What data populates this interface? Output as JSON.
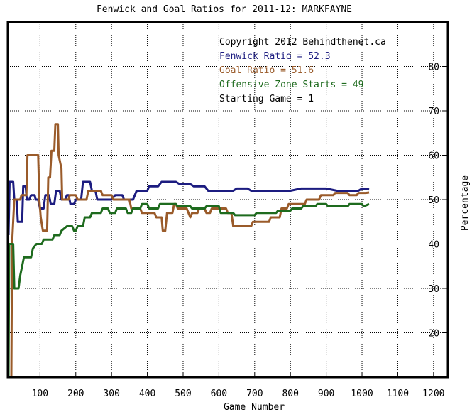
{
  "chart_data": {
    "type": "line",
    "title": "Fenwick and Goal Ratios for 2011-12: MARKFAYNE",
    "xlabel": "Game Number",
    "ylabel": "Percentage",
    "xlim": [
      10,
      1240
    ],
    "ylim": [
      10,
      90
    ],
    "x_ticks": [
      100,
      200,
      300,
      400,
      500,
      600,
      700,
      800,
      900,
      1000,
      1100,
      1200
    ],
    "y_ticks": [
      20,
      30,
      40,
      50,
      60,
      70,
      80
    ],
    "grid": true,
    "y_axis_side": "right",
    "annotations": [
      {
        "text": "Copyright 2012 Behindthenet.ca",
        "color": "#000000"
      },
      {
        "text": "Fenwick Ratio = 52.3",
        "color": "#1c1c80"
      },
      {
        "text": "Goal Ratio = 51.6",
        "color": "#9a5b2a"
      },
      {
        "text": "Offensive Zone Starts = 49",
        "color": "#1e6b1e"
      },
      {
        "text": "Starting Game = 1",
        "color": "#000000"
      }
    ],
    "series": [
      {
        "color": "#1c1c80",
        "points": [
          [
            12,
            42
          ],
          [
            15,
            54
          ],
          [
            25,
            54
          ],
          [
            28,
            50
          ],
          [
            35,
            50
          ],
          [
            38,
            45
          ],
          [
            50,
            45
          ],
          [
            53,
            53
          ],
          [
            60,
            53
          ],
          [
            63,
            50
          ],
          [
            70,
            50
          ],
          [
            75,
            51
          ],
          [
            85,
            51
          ],
          [
            88,
            50
          ],
          [
            95,
            50
          ],
          [
            100,
            48
          ],
          [
            110,
            48
          ],
          [
            115,
            51
          ],
          [
            125,
            51
          ],
          [
            130,
            49
          ],
          [
            140,
            49
          ],
          [
            145,
            52
          ],
          [
            155,
            52
          ],
          [
            160,
            50
          ],
          [
            170,
            50
          ],
          [
            175,
            51
          ],
          [
            180,
            51
          ],
          [
            185,
            49
          ],
          [
            195,
            49
          ],
          [
            200,
            50
          ],
          [
            215,
            50
          ],
          [
            220,
            54
          ],
          [
            240,
            54
          ],
          [
            245,
            52
          ],
          [
            255,
            52
          ],
          [
            260,
            50
          ],
          [
            300,
            50
          ],
          [
            310,
            51
          ],
          [
            330,
            51
          ],
          [
            335,
            50
          ],
          [
            360,
            50
          ],
          [
            370,
            52
          ],
          [
            400,
            52
          ],
          [
            405,
            53
          ],
          [
            430,
            53
          ],
          [
            440,
            54
          ],
          [
            480,
            54
          ],
          [
            490,
            53.5
          ],
          [
            520,
            53.5
          ],
          [
            530,
            53
          ],
          [
            560,
            53
          ],
          [
            570,
            52
          ],
          [
            640,
            52
          ],
          [
            650,
            52.5
          ],
          [
            680,
            52.5
          ],
          [
            690,
            52
          ],
          [
            800,
            52
          ],
          [
            830,
            52.5
          ],
          [
            900,
            52.5
          ],
          [
            930,
            52
          ],
          [
            990,
            52
          ],
          [
            1000,
            52.5
          ],
          [
            1020,
            52.3
          ]
        ]
      },
      {
        "color": "#9a5b2a",
        "points": [
          [
            20,
            10
          ],
          [
            22,
            40
          ],
          [
            28,
            50
          ],
          [
            45,
            50
          ],
          [
            48,
            51
          ],
          [
            62,
            51
          ],
          [
            65,
            60
          ],
          [
            95,
            60
          ],
          [
            98,
            50
          ],
          [
            102,
            46
          ],
          [
            108,
            43
          ],
          [
            120,
            43
          ],
          [
            123,
            55
          ],
          [
            128,
            55
          ],
          [
            132,
            61
          ],
          [
            140,
            61
          ],
          [
            143,
            67
          ],
          [
            150,
            67
          ],
          [
            152,
            60
          ],
          [
            160,
            57
          ],
          [
            162,
            50
          ],
          [
            180,
            50
          ],
          [
            183,
            51
          ],
          [
            200,
            51
          ],
          [
            205,
            50
          ],
          [
            230,
            50
          ],
          [
            235,
            52
          ],
          [
            270,
            52
          ],
          [
            275,
            51
          ],
          [
            300,
            51
          ],
          [
            305,
            50
          ],
          [
            350,
            50
          ],
          [
            355,
            48
          ],
          [
            380,
            48
          ],
          [
            385,
            47
          ],
          [
            420,
            47
          ],
          [
            425,
            46
          ],
          [
            440,
            46
          ],
          [
            443,
            43
          ],
          [
            450,
            43
          ],
          [
            455,
            47
          ],
          [
            470,
            47
          ],
          [
            475,
            49
          ],
          [
            480,
            49
          ],
          [
            485,
            48
          ],
          [
            510,
            48
          ],
          [
            515,
            47
          ],
          [
            520,
            46
          ],
          [
            525,
            47
          ],
          [
            540,
            47
          ],
          [
            545,
            48
          ],
          [
            560,
            48
          ],
          [
            565,
            47
          ],
          [
            575,
            47
          ],
          [
            580,
            48
          ],
          [
            620,
            48
          ],
          [
            625,
            47
          ],
          [
            635,
            47
          ],
          [
            640,
            44
          ],
          [
            690,
            44
          ],
          [
            695,
            45
          ],
          [
            740,
            45
          ],
          [
            745,
            46
          ],
          [
            770,
            46
          ],
          [
            775,
            48
          ],
          [
            790,
            48
          ],
          [
            795,
            49
          ],
          [
            840,
            49
          ],
          [
            845,
            50
          ],
          [
            880,
            50
          ],
          [
            885,
            51
          ],
          [
            920,
            51
          ],
          [
            925,
            51.5
          ],
          [
            960,
            51.5
          ],
          [
            965,
            51
          ],
          [
            985,
            51
          ],
          [
            990,
            51.5
          ],
          [
            1010,
            51.5
          ],
          [
            1020,
            51.6
          ]
        ]
      },
      {
        "color": "#1e6b1e",
        "points": [
          [
            12,
            10
          ],
          [
            14,
            40
          ],
          [
            25,
            40
          ],
          [
            28,
            30
          ],
          [
            40,
            30
          ],
          [
            45,
            33
          ],
          [
            55,
            37
          ],
          [
            75,
            37
          ],
          [
            80,
            39
          ],
          [
            90,
            40
          ],
          [
            105,
            40
          ],
          [
            110,
            41
          ],
          [
            135,
            41
          ],
          [
            140,
            42
          ],
          [
            155,
            42
          ],
          [
            160,
            43
          ],
          [
            175,
            44
          ],
          [
            190,
            44
          ],
          [
            195,
            43
          ],
          [
            200,
            43
          ],
          [
            205,
            44
          ],
          [
            220,
            44
          ],
          [
            225,
            46
          ],
          [
            240,
            46
          ],
          [
            245,
            47
          ],
          [
            270,
            47
          ],
          [
            275,
            48
          ],
          [
            290,
            48
          ],
          [
            295,
            47
          ],
          [
            310,
            47
          ],
          [
            315,
            48
          ],
          [
            340,
            48
          ],
          [
            345,
            47
          ],
          [
            355,
            47
          ],
          [
            360,
            48
          ],
          [
            380,
            48
          ],
          [
            385,
            49
          ],
          [
            400,
            49
          ],
          [
            405,
            48
          ],
          [
            430,
            48
          ],
          [
            435,
            49
          ],
          [
            480,
            49
          ],
          [
            485,
            48.5
          ],
          [
            520,
            48.5
          ],
          [
            525,
            48
          ],
          [
            560,
            48
          ],
          [
            565,
            48.5
          ],
          [
            600,
            48.5
          ],
          [
            605,
            47
          ],
          [
            640,
            47
          ],
          [
            645,
            46.5
          ],
          [
            700,
            46.5
          ],
          [
            705,
            47
          ],
          [
            760,
            47
          ],
          [
            765,
            47.5
          ],
          [
            800,
            47.5
          ],
          [
            805,
            48
          ],
          [
            830,
            48
          ],
          [
            835,
            48.5
          ],
          [
            870,
            48.5
          ],
          [
            875,
            49
          ],
          [
            900,
            49
          ],
          [
            905,
            48.5
          ],
          [
            960,
            48.5
          ],
          [
            965,
            49
          ],
          [
            1000,
            49
          ],
          [
            1005,
            48.5
          ],
          [
            1020,
            49
          ]
        ]
      }
    ]
  }
}
